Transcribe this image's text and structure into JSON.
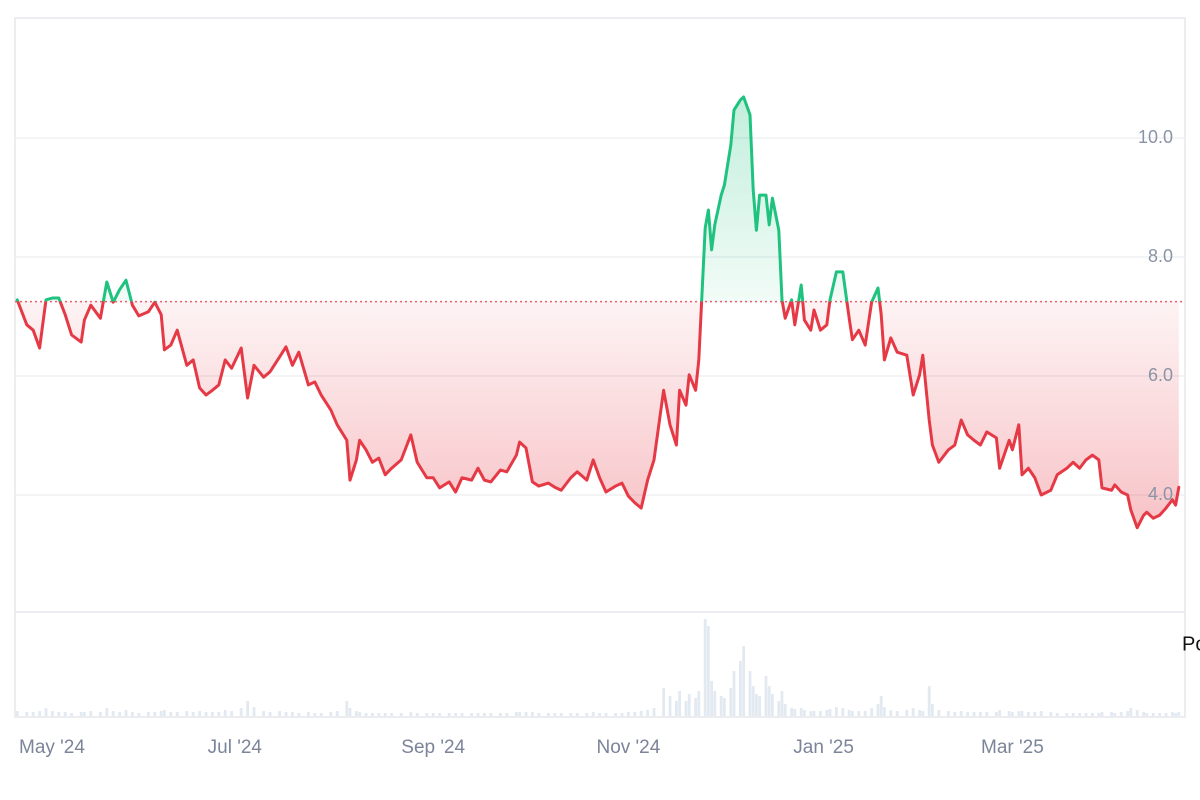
{
  "chart_data": {
    "type": "baseline",
    "baseline": 7.25,
    "up_color": "#1fc27e",
    "down_color": "#e63946",
    "volume_color": "#e3e9f0",
    "grid": true,
    "overlay_text": "Po",
    "xlim": [
      "2024-04-23",
      "2025-04-23"
    ],
    "xticks": [
      {
        "value": "2024-05-01",
        "label": "May '24"
      },
      {
        "value": "2024-07-01",
        "label": "Jul '24"
      },
      {
        "value": "2024-09-01",
        "label": "Sep '24"
      },
      {
        "value": "2024-11-01",
        "label": "Nov '24"
      },
      {
        "value": "2025-01-01",
        "label": "Jan '25"
      },
      {
        "value": "2025-03-01",
        "label": "Mar '25"
      }
    ],
    "ylim": [
      2,
      12
    ],
    "yticks": [
      {
        "value": 4,
        "label": "4.0"
      },
      {
        "value": 6,
        "label": "6.0"
      },
      {
        "value": 8,
        "label": "8.0"
      },
      {
        "value": 10,
        "label": "10.0"
      }
    ],
    "x": [
      "2024-04-24",
      "2024-04-27",
      "2024-04-29",
      "2024-05-01",
      "2024-05-03",
      "2024-05-05",
      "2024-05-07",
      "2024-05-09",
      "2024-05-11",
      "2024-05-14",
      "2024-05-15",
      "2024-05-17",
      "2024-05-20",
      "2024-05-22",
      "2024-05-24",
      "2024-05-26",
      "2024-05-28",
      "2024-05-30",
      "2024-06-01",
      "2024-06-04",
      "2024-06-06",
      "2024-06-08",
      "2024-06-09",
      "2024-06-11",
      "2024-06-13",
      "2024-06-16",
      "2024-06-18",
      "2024-06-20",
      "2024-06-22",
      "2024-06-24",
      "2024-06-26",
      "2024-06-28",
      "2024-06-30",
      "2024-07-03",
      "2024-07-05",
      "2024-07-07",
      "2024-07-10",
      "2024-07-12",
      "2024-07-15",
      "2024-07-17",
      "2024-07-19",
      "2024-07-21",
      "2024-07-24",
      "2024-07-26",
      "2024-07-28",
      "2024-07-31",
      "2024-08-02",
      "2024-08-05",
      "2024-08-06",
      "2024-08-08",
      "2024-08-09",
      "2024-08-11",
      "2024-08-13",
      "2024-08-15",
      "2024-08-17",
      "2024-08-19",
      "2024-08-22",
      "2024-08-25",
      "2024-08-27",
      "2024-08-30",
      "2024-09-01",
      "2024-09-03",
      "2024-09-06",
      "2024-09-08",
      "2024-09-10",
      "2024-09-13",
      "2024-09-15",
      "2024-09-17",
      "2024-09-19",
      "2024-09-22",
      "2024-09-24",
      "2024-09-27",
      "2024-09-28",
      "2024-09-30",
      "2024-10-02",
      "2024-10-04",
      "2024-10-07",
      "2024-10-09",
      "2024-10-11",
      "2024-10-14",
      "2024-10-16",
      "2024-10-19",
      "2024-10-21",
      "2024-10-23",
      "2024-10-25",
      "2024-10-28",
      "2024-10-30",
      "2024-11-01",
      "2024-11-03",
      "2024-11-05",
      "2024-11-07",
      "2024-11-09",
      "2024-11-12",
      "2024-11-14",
      "2024-11-16",
      "2024-11-17",
      "2024-11-19",
      "2024-11-20",
      "2024-11-22",
      "2024-11-23",
      "2024-11-25",
      "2024-11-26",
      "2024-11-27",
      "2024-11-28",
      "2024-11-30",
      "2024-12-01",
      "2024-12-03",
      "2024-12-04",
      "2024-12-06",
      "2024-12-07",
      "2024-12-09",
      "2024-12-10",
      "2024-12-11",
      "2024-12-12",
      "2024-12-14",
      "2024-12-15",
      "2024-12-16",
      "2024-12-18",
      "2024-12-19",
      "2024-12-20",
      "2024-12-22",
      "2024-12-23",
      "2024-12-25",
      "2024-12-26",
      "2024-12-28",
      "2024-12-29",
      "2024-12-31",
      "2025-01-02",
      "2025-01-03",
      "2025-01-05",
      "2025-01-07",
      "2025-01-09",
      "2025-01-10",
      "2025-01-12",
      "2025-01-14",
      "2025-01-16",
      "2025-01-18",
      "2025-01-19",
      "2025-01-20",
      "2025-01-22",
      "2025-01-24",
      "2025-01-27",
      "2025-01-29",
      "2025-01-31",
      "2025-02-01",
      "2025-02-03",
      "2025-02-04",
      "2025-02-06",
      "2025-02-09",
      "2025-02-11",
      "2025-02-13",
      "2025-02-15",
      "2025-02-17",
      "2025-02-19",
      "2025-02-21",
      "2025-02-24",
      "2025-02-25",
      "2025-02-28",
      "2025-03-01",
      "2025-03-03",
      "2025-03-04",
      "2025-03-06",
      "2025-03-08",
      "2025-03-10",
      "2025-03-13",
      "2025-03-15",
      "2025-03-18",
      "2025-03-20",
      "2025-03-22",
      "2025-03-24",
      "2025-03-26",
      "2025-03-28",
      "2025-03-29",
      "2025-04-01",
      "2025-04-02",
      "2025-04-04",
      "2025-04-06",
      "2025-04-07",
      "2025-04-09",
      "2025-04-11",
      "2025-04-12",
      "2025-04-14",
      "2025-04-16",
      "2025-04-18",
      "2025-04-20",
      "2025-04-21",
      "2025-04-22"
    ],
    "values": [
      7.28,
      6.86,
      6.77,
      6.47,
      7.28,
      7.31,
      7.31,
      7.03,
      6.69,
      6.57,
      6.94,
      7.19,
      6.97,
      7.58,
      7.24,
      7.45,
      7.61,
      7.19,
      7.01,
      7.08,
      7.24,
      7.03,
      6.44,
      6.52,
      6.77,
      6.18,
      6.27,
      5.8,
      5.68,
      5.76,
      5.85,
      6.27,
      6.13,
      6.47,
      5.63,
      6.18,
      5.98,
      6.07,
      6.32,
      6.49,
      6.18,
      6.4,
      5.85,
      5.9,
      5.68,
      5.43,
      5.18,
      4.92,
      4.25,
      4.59,
      4.92,
      4.76,
      4.55,
      4.62,
      4.34,
      4.45,
      4.59,
      5.01,
      4.55,
      4.29,
      4.29,
      4.12,
      4.22,
      4.05,
      4.29,
      4.25,
      4.45,
      4.25,
      4.22,
      4.42,
      4.39,
      4.67,
      4.89,
      4.79,
      4.22,
      4.15,
      4.2,
      4.13,
      4.08,
      4.29,
      4.39,
      4.25,
      4.59,
      4.29,
      4.05,
      4.15,
      4.2,
      3.98,
      3.87,
      3.78,
      4.25,
      4.59,
      5.76,
      5.18,
      4.84,
      5.76,
      5.51,
      6.02,
      5.76,
      6.27,
      8.49,
      8.79,
      8.12,
      8.54,
      9.04,
      9.21,
      9.88,
      10.47,
      10.64,
      10.69,
      10.39,
      9.13,
      8.45,
      9.04,
      9.04,
      8.54,
      8.99,
      8.45,
      7.28,
      6.97,
      7.28,
      6.86,
      7.53,
      6.94,
      6.77,
      7.11,
      6.77,
      6.86,
      7.28,
      7.75,
      7.75,
      6.97,
      6.61,
      6.77,
      6.52,
      7.24,
      7.48,
      7.03,
      6.27,
      6.64,
      6.4,
      6.35,
      5.68,
      6.02,
      6.35,
      5.26,
      4.84,
      4.55,
      4.76,
      4.84,
      5.26,
      5.01,
      4.92,
      4.84,
      5.06,
      4.96,
      4.45,
      4.92,
      4.76,
      5.18,
      4.34,
      4.45,
      4.29,
      4.0,
      4.08,
      4.34,
      4.45,
      4.55,
      4.45,
      4.59,
      4.67,
      4.59,
      4.12,
      4.08,
      4.17,
      4.05,
      4.0,
      3.75,
      3.45,
      3.66,
      3.71,
      3.61,
      3.66,
      3.78,
      3.92,
      3.83,
      4.13
    ],
    "volume": [
      5,
      4,
      4,
      5,
      8,
      5,
      4,
      4,
      3,
      4,
      4,
      5,
      4,
      8,
      5,
      4,
      6,
      4,
      3,
      4,
      4,
      5,
      6,
      4,
      4,
      5,
      4,
      5,
      4,
      4,
      4,
      6,
      5,
      8,
      15,
      9,
      5,
      4,
      5,
      4,
      4,
      3,
      4,
      3,
      3,
      4,
      5,
      15,
      8,
      5,
      4,
      3,
      3,
      3,
      3,
      3,
      3,
      4,
      3,
      3,
      3,
      3,
      3,
      3,
      3,
      3,
      3,
      3,
      3,
      3,
      3,
      4,
      4,
      4,
      4,
      3,
      3,
      3,
      3,
      3,
      3,
      3,
      4,
      3,
      3,
      3,
      3,
      4,
      4,
      5,
      6,
      8,
      28,
      20,
      15,
      25,
      15,
      22,
      18,
      25,
      97,
      90,
      35,
      25,
      20,
      18,
      28,
      45,
      55,
      70,
      45,
      30,
      22,
      20,
      40,
      30,
      22,
      15,
      25,
      12,
      8,
      7,
      8,
      6,
      5,
      5,
      5,
      6,
      7,
      9,
      8,
      6,
      5,
      5,
      5,
      8,
      12,
      20,
      9,
      6,
      5,
      6,
      8,
      6,
      5,
      30,
      12,
      6,
      5,
      4,
      5,
      4,
      4,
      4,
      4,
      4,
      6,
      5,
      4,
      5,
      5,
      4,
      4,
      5,
      4,
      3,
      3,
      3,
      3,
      3,
      3,
      3,
      4,
      4,
      3,
      4,
      5,
      8,
      6,
      4,
      3,
      3,
      3,
      3,
      4,
      3,
      4
    ]
  }
}
